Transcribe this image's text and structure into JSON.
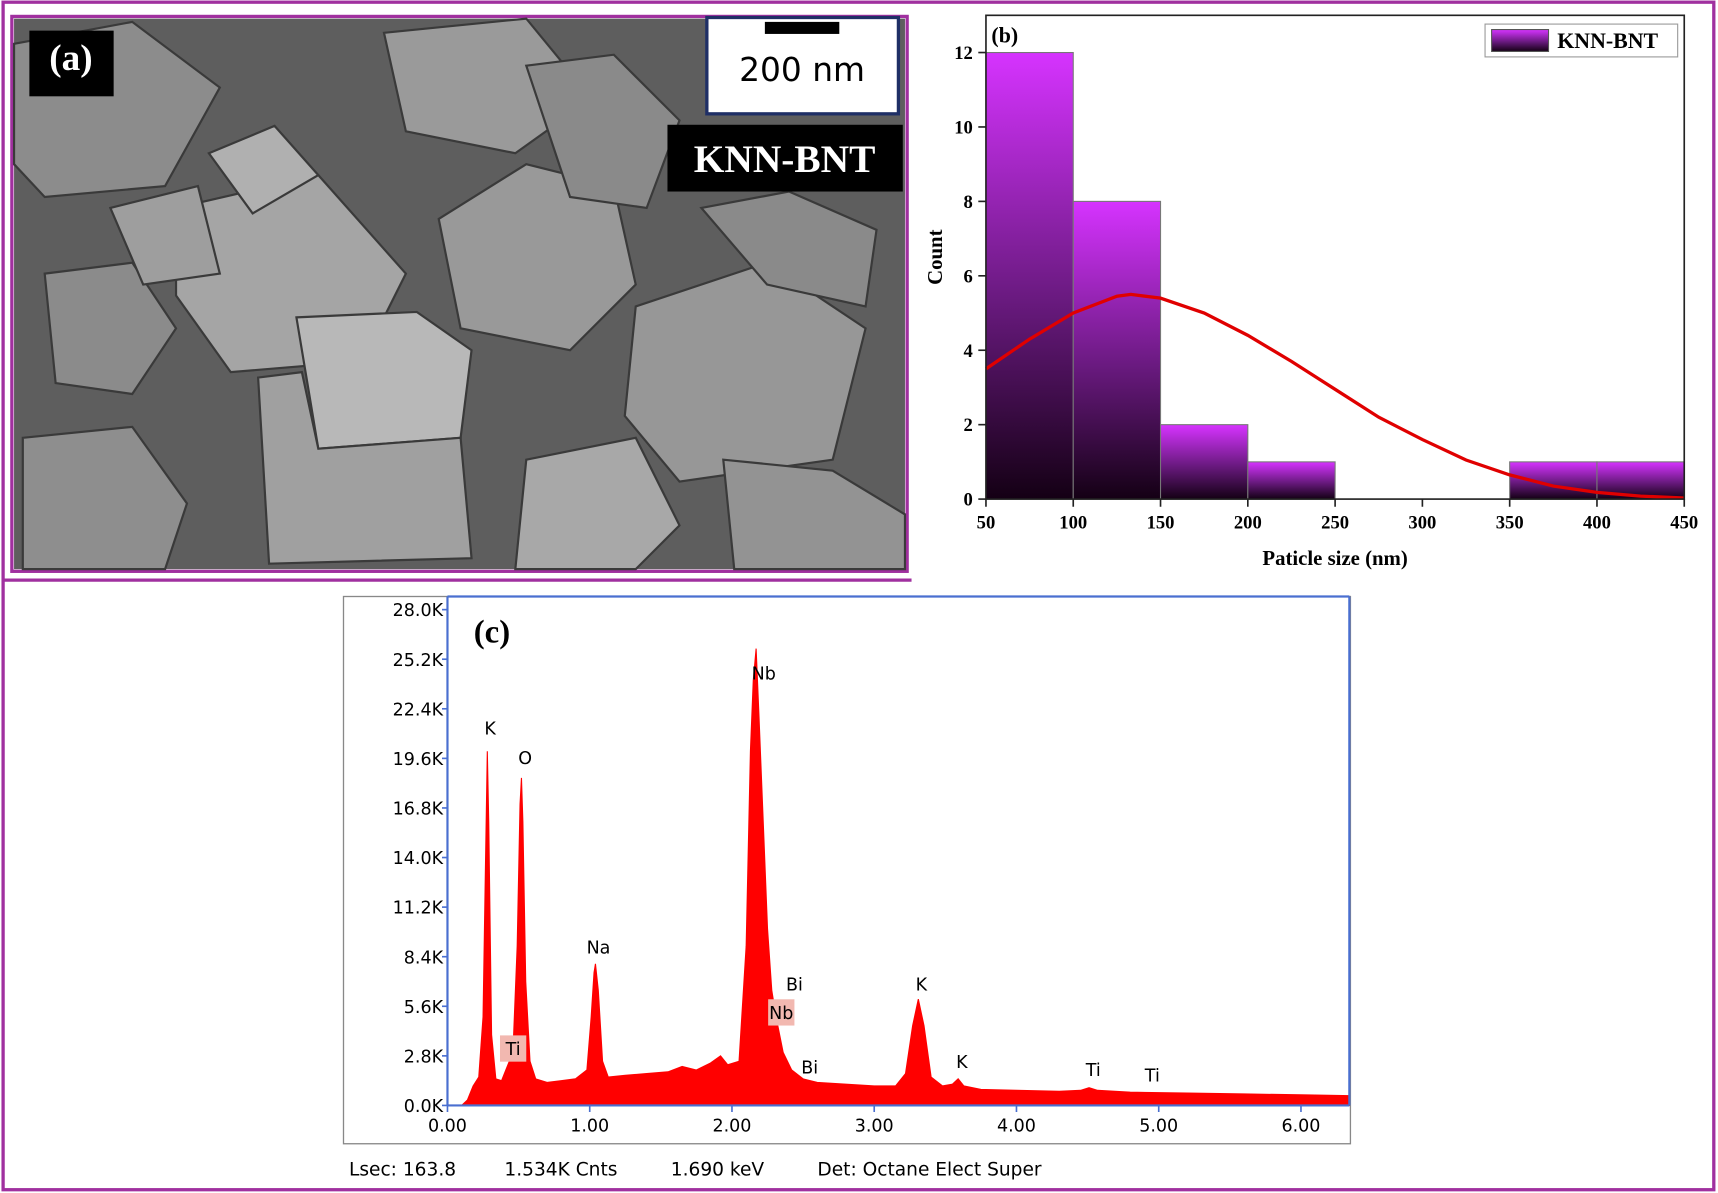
{
  "panel_a": {
    "label": "(a)",
    "scale_bar": "200 nm",
    "sample": "KNN-BNT"
  },
  "chart_data": [
    {
      "type": "histogram",
      "title": "(b)",
      "x_label": "Paticle size (nm)",
      "y_label": "Count",
      "bins": [
        50,
        100,
        150,
        200,
        250,
        300,
        350,
        400,
        450
      ],
      "series": [
        {
          "name": "KNN-BNT",
          "color": "#cc33ff",
          "values": [
            12,
            8,
            2,
            1,
            0,
            0,
            1,
            1
          ]
        }
      ],
      "fit": {
        "color": "#e00000",
        "x": [
          50,
          75,
          100,
          125,
          133,
          150,
          175,
          200,
          225,
          250,
          275,
          300,
          325,
          350,
          375,
          400,
          425,
          450
        ],
        "values": [
          3.5,
          4.3,
          5.0,
          5.45,
          5.5,
          5.4,
          5.0,
          4.4,
          3.7,
          2.95,
          2.2,
          1.6,
          1.05,
          0.65,
          0.35,
          0.18,
          0.08,
          0.03
        ]
      },
      "xlim": [
        50,
        450
      ],
      "xticks": [
        50,
        100,
        150,
        200,
        250,
        300,
        350,
        400,
        450
      ],
      "ylim": [
        0,
        13
      ],
      "yticks": [
        0,
        2,
        4,
        6,
        8,
        10,
        12
      ],
      "legend": "upper right"
    },
    {
      "type": "area",
      "title": "(c)",
      "color": "#ff0000",
      "x": [
        0.1,
        0.14,
        0.18,
        0.22,
        0.25,
        0.27,
        0.28,
        0.29,
        0.31,
        0.34,
        0.38,
        0.42,
        0.46,
        0.49,
        0.51,
        0.52,
        0.53,
        0.55,
        0.58,
        0.62,
        0.7,
        0.8,
        0.9,
        0.98,
        1.01,
        1.03,
        1.04,
        1.06,
        1.09,
        1.13,
        1.25,
        1.4,
        1.55,
        1.65,
        1.75,
        1.85,
        1.92,
        1.97,
        2.05,
        2.1,
        2.13,
        2.15,
        2.17,
        2.19,
        2.22,
        2.25,
        2.28,
        2.31,
        2.36,
        2.42,
        2.5,
        2.6,
        2.8,
        3.0,
        3.15,
        3.22,
        3.27,
        3.31,
        3.35,
        3.4,
        3.48,
        3.55,
        3.59,
        3.63,
        3.75,
        4.0,
        4.3,
        4.45,
        4.51,
        4.57,
        4.8,
        5.2,
        5.6,
        6.0,
        6.34
      ],
      "values": [
        0,
        300,
        1100,
        1600,
        5000,
        15000,
        20000,
        16000,
        4000,
        1500,
        1400,
        2200,
        3000,
        9000,
        17000,
        18500,
        16000,
        7000,
        2500,
        1500,
        1300,
        1400,
        1500,
        2000,
        5000,
        7500,
        8000,
        6500,
        2500,
        1600,
        1700,
        1800,
        1900,
        2200,
        2000,
        2400,
        2800,
        2300,
        2500,
        9000,
        20000,
        24000,
        25800,
        22000,
        16000,
        10000,
        6500,
        5000,
        3000,
        2000,
        1500,
        1300,
        1200,
        1100,
        1100,
        1800,
        4500,
        6000,
        4500,
        1600,
        1100,
        1200,
        1500,
        1100,
        900,
        850,
        800,
        850,
        1000,
        850,
        750,
        700,
        650,
        600,
        550
      ],
      "xlim": [
        0,
        6.34
      ],
      "xticks": [
        {
          "value": 0,
          "label": "0.00"
        },
        {
          "value": 1,
          "label": "1.00"
        },
        {
          "value": 2,
          "label": "2.00"
        },
        {
          "value": 3,
          "label": "3.00"
        },
        {
          "value": 4,
          "label": "4.00"
        },
        {
          "value": 5,
          "label": "5.00"
        },
        {
          "value": 6,
          "label": "6.00"
        }
      ],
      "ylim": [
        0,
        28000
      ],
      "yticks": [
        {
          "value": 0,
          "label": "0.0K"
        },
        {
          "value": 2800,
          "label": "2.8K"
        },
        {
          "value": 5600,
          "label": "5.6K"
        },
        {
          "value": 8400,
          "label": "8.4K"
        },
        {
          "value": 11200,
          "label": "11.2K"
        },
        {
          "value": 14000,
          "label": "14.0K"
        },
        {
          "value": 16800,
          "label": "16.8K"
        },
        {
          "value": 19600,
          "label": "19.6K"
        },
        {
          "value": 22400,
          "label": "22.4K"
        },
        {
          "value": 25200,
          "label": "25.2K"
        },
        {
          "value": 28000,
          "label": "28.0K"
        }
      ],
      "annotations": [
        "K",
        "O",
        "Na",
        "Nb",
        "Bi",
        "Nb",
        "Bi",
        "K",
        "K",
        "Ti",
        "Ti",
        "Ti"
      ],
      "footer": [
        "Lsec: 163.8",
        "1.534K Cnts",
        "1.690 keV",
        "Det: Octane Elect Super"
      ]
    }
  ]
}
